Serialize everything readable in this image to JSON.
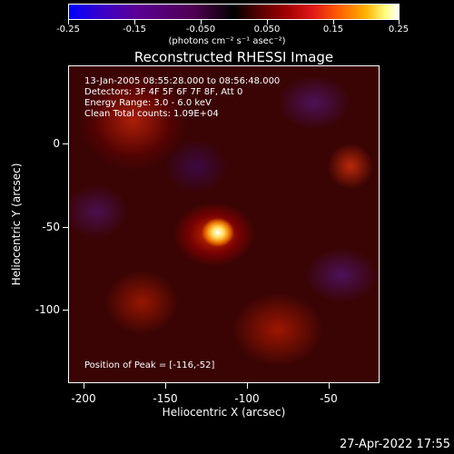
{
  "colorbar": {
    "ticks": [
      "-0.25",
      "-0.15",
      "-0.050",
      "0.050",
      "0.15",
      "0.25"
    ],
    "unit": "(photons cm⁻² s⁻¹ asec⁻²)"
  },
  "title": "Reconstructed RHESSI Image",
  "info": {
    "line1": "13-Jan-2005 08:55:28.000 to 08:56:48.000",
    "line2": "Detectors: 3F 4F 5F 6F 7F 8F, Att 0",
    "line3": "Energy Range: 3.0 - 6.0 keV",
    "line4": "Clean     Total counts: 1.09E+04"
  },
  "peak": "Position of Peak = [-116,-52]",
  "axes": {
    "x_ticks": [
      "-200",
      "-150",
      "-100",
      "-50"
    ],
    "y_ticks": [
      "0",
      "-50",
      "-100"
    ],
    "x_label": "Heliocentric X (arcsec)",
    "y_label": "Heliocentric Y (arcsec)"
  },
  "timestamp": "27-Apr-2022 17:55"
}
